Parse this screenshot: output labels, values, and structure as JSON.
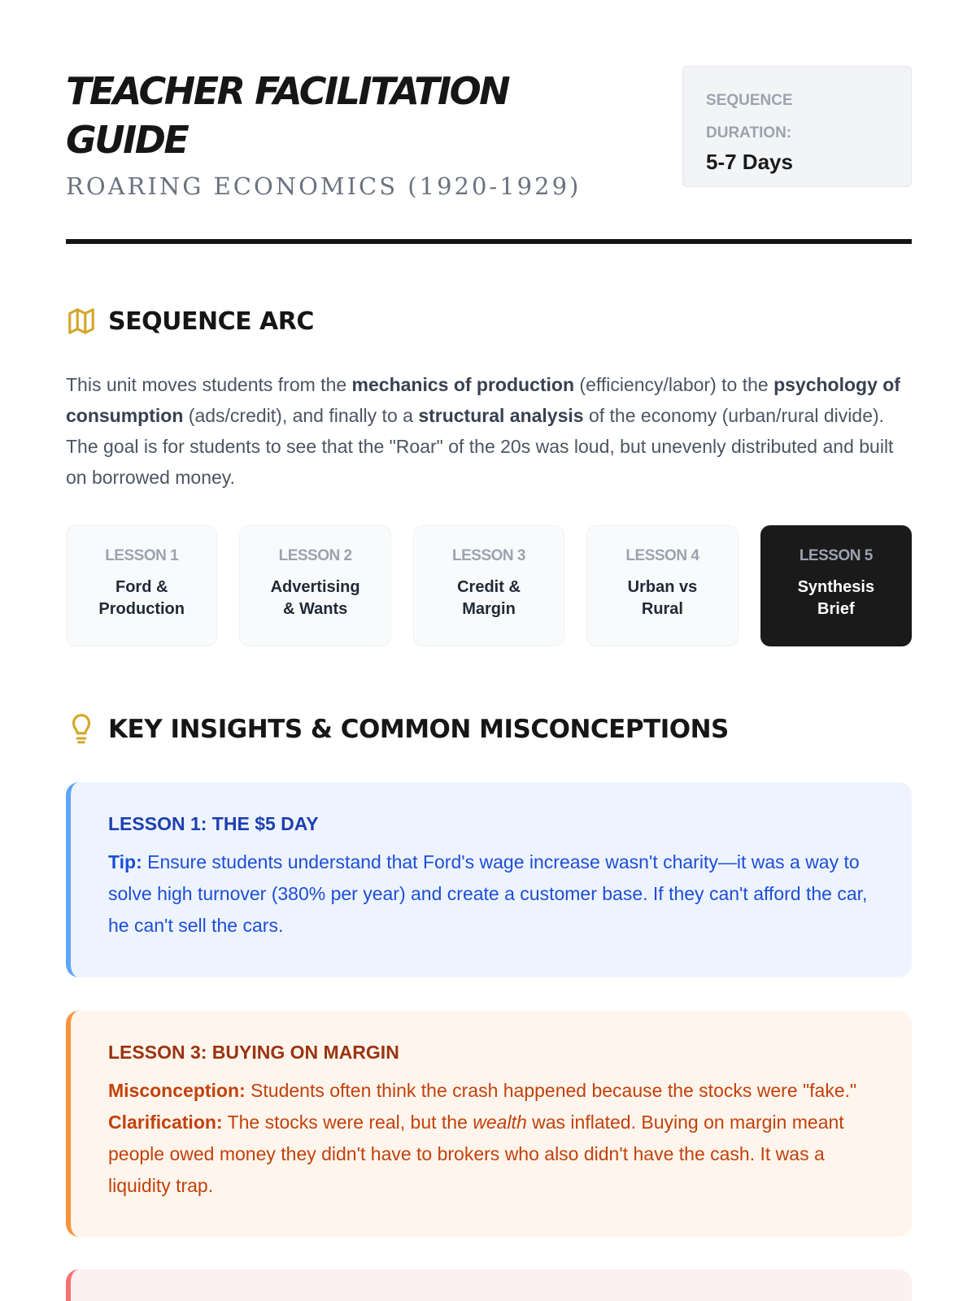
{
  "header": {
    "title": "TEACHER FACILITATION GUIDE",
    "subtitle": "ROARING ECONOMICS (1920-1929)",
    "duration_label": "SEQUENCE DURATION:",
    "duration_value": "5-7 Days"
  },
  "arc": {
    "heading": "SEQUENCE ARC",
    "icon": "map-icon",
    "intro": [
      "This unit moves students from the ",
      "mechanics of production",
      " (efficiency/labor) to the ",
      "psychology of consumption",
      " (ads/credit), and finally to a ",
      "structural analysis",
      " of the economy (urban/rural divide). The goal is for students to see that the \"Roar\" of the 20s was loud, but unevenly distributed and built on borrowed money."
    ],
    "lessons": [
      {
        "num": "LESSON 1",
        "title": "Ford & Production"
      },
      {
        "num": "LESSON 2",
        "title": "Advertising & Wants"
      },
      {
        "num": "LESSON 3",
        "title": "Credit & Margin"
      },
      {
        "num": "LESSON 4",
        "title": "Urban vs Rural"
      },
      {
        "num": "LESSON 5",
        "title": "Synthesis Brief",
        "active": true
      }
    ]
  },
  "insights": {
    "heading": "KEY INSIGHTS & COMMON MISCONCEPTIONS",
    "icon": "lightbulb-icon",
    "boxes": [
      {
        "title": "LESSON 1: THE $5 DAY",
        "label": "Tip:",
        "text": " Ensure students understand that Ford's wage increase wasn't charity—it was a way to solve high turnover (380% per year) and create a customer base. If they can't afford the car, he can't sell the cars.",
        "color": "#60a5fa"
      },
      {
        "title": "LESSON 3: BUYING ON MARGIN",
        "label": "Misconception:",
        "text1": " Students often think the crash happened because the stocks were \"fake.\" ",
        "label2": "Clarification:",
        "text2": " The stocks were real, but the ",
        "em": "wealth",
        "text3": " was inflated. Buying on margin meant people owed money they didn't have to brokers who also didn't have the cash. It was a liquidity trap.",
        "color": "#fb923c"
      }
    ]
  }
}
